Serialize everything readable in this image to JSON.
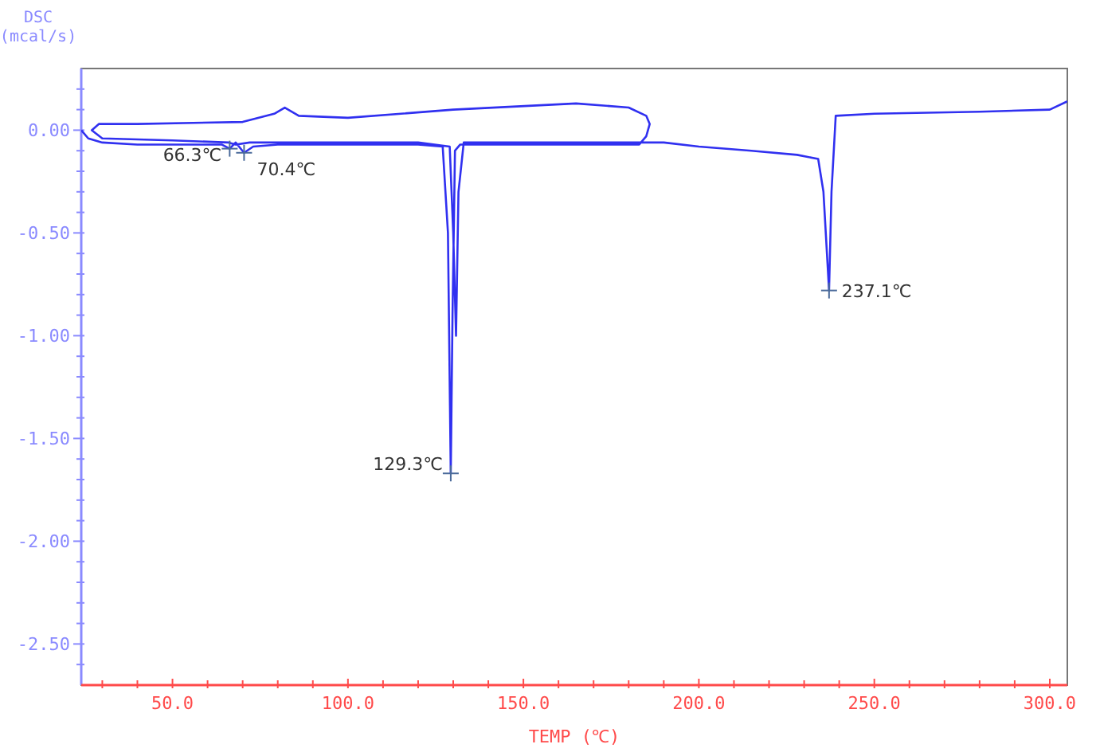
{
  "chart_data": {
    "type": "line",
    "xlabel": "TEMP  (℃)",
    "ylabel": "DSC\n(mcal/s)",
    "xlim": [
      24,
      305
    ],
    "ylim": [
      -2.7,
      0.3
    ],
    "xticks": [
      {
        "value": 30,
        "label": null
      },
      {
        "value": 40,
        "label": null
      },
      {
        "value": 50,
        "label": "50.0"
      },
      {
        "value": 60,
        "label": null
      },
      {
        "value": 70,
        "label": null
      },
      {
        "value": 80,
        "label": null
      },
      {
        "value": 90,
        "label": null
      },
      {
        "value": 100,
        "label": "100.0"
      },
      {
        "value": 110,
        "label": null
      },
      {
        "value": 120,
        "label": null
      },
      {
        "value": 130,
        "label": null
      },
      {
        "value": 140,
        "label": null
      },
      {
        "value": 150,
        "label": "150.0"
      },
      {
        "value": 160,
        "label": null
      },
      {
        "value": 170,
        "label": null
      },
      {
        "value": 180,
        "label": null
      },
      {
        "value": 190,
        "label": null
      },
      {
        "value": 200,
        "label": "200.0"
      },
      {
        "value": 210,
        "label": null
      },
      {
        "value": 220,
        "label": null
      },
      {
        "value": 230,
        "label": null
      },
      {
        "value": 240,
        "label": null
      },
      {
        "value": 250,
        "label": "250.0"
      },
      {
        "value": 260,
        "label": null
      },
      {
        "value": 270,
        "label": null
      },
      {
        "value": 280,
        "label": null
      },
      {
        "value": 290,
        "label": null
      },
      {
        "value": 300,
        "label": "300.0"
      }
    ],
    "yticks": [
      {
        "value": 0.2,
        "label": null
      },
      {
        "value": 0.1,
        "label": null
      },
      {
        "value": 0,
        "label": "0.00"
      },
      {
        "value": -0.1,
        "label": null
      },
      {
        "value": -0.2,
        "label": null
      },
      {
        "value": -0.3,
        "label": null
      },
      {
        "value": -0.4,
        "label": null
      },
      {
        "value": -0.5,
        "label": "-0.50"
      },
      {
        "value": -0.6,
        "label": null
      },
      {
        "value": -0.7,
        "label": null
      },
      {
        "value": -0.8,
        "label": null
      },
      {
        "value": -0.9,
        "label": null
      },
      {
        "value": -1,
        "label": "-1.00"
      },
      {
        "value": -1.1,
        "label": null
      },
      {
        "value": -1.2,
        "label": null
      },
      {
        "value": -1.3,
        "label": null
      },
      {
        "value": -1.4,
        "label": null
      },
      {
        "value": -1.5,
        "label": "-1.50"
      },
      {
        "value": -1.6,
        "label": null
      },
      {
        "value": -1.7,
        "label": null
      },
      {
        "value": -1.8,
        "label": null
      },
      {
        "value": -1.9,
        "label": null
      },
      {
        "value": -2,
        "label": "-2.00"
      },
      {
        "value": -2.1,
        "label": null
      },
      {
        "value": -2.2,
        "label": null
      },
      {
        "value": -2.3,
        "label": null
      },
      {
        "value": -2.4,
        "label": null
      },
      {
        "value": -2.5,
        "label": "-2.50"
      },
      {
        "value": -2.6,
        "label": null
      }
    ],
    "grid": false,
    "marker": "none",
    "line_style": "solid",
    "series": [
      {
        "color": "#3030f0",
        "x": [
          24,
          26,
          30,
          40,
          50,
          64,
          66.3,
          68,
          70.4,
          73,
          80,
          100,
          120,
          127,
          128.5,
          129.3,
          129.8,
          130.5,
          132,
          150,
          170,
          183,
          185,
          186,
          185,
          180,
          165,
          130,
          100,
          86,
          82,
          79,
          70,
          40,
          29,
          27,
          30,
          50,
          66,
          68,
          72,
          90,
          120,
          129,
          130,
          130.8,
          131.5,
          133,
          160,
          180,
          190,
          200,
          215,
          228,
          234,
          235.5,
          237.1,
          237.8,
          239,
          250,
          280,
          300,
          305
        ],
        "values": [
          0.0,
          -0.04,
          -0.06,
          -0.07,
          -0.07,
          -0.07,
          -0.09,
          -0.06,
          -0.11,
          -0.08,
          -0.07,
          -0.07,
          -0.07,
          -0.08,
          -0.5,
          -1.67,
          -0.9,
          -0.1,
          -0.07,
          -0.07,
          -0.07,
          -0.07,
          -0.03,
          0.03,
          0.07,
          0.11,
          0.13,
          0.1,
          0.06,
          0.07,
          0.11,
          0.08,
          0.04,
          0.03,
          0.03,
          0.0,
          -0.04,
          -0.05,
          -0.06,
          -0.07,
          -0.06,
          -0.06,
          -0.06,
          -0.08,
          -0.5,
          -1.0,
          -0.3,
          -0.06,
          -0.06,
          -0.06,
          -0.06,
          -0.08,
          -0.1,
          -0.12,
          -0.14,
          -0.3,
          -0.78,
          -0.3,
          0.07,
          0.08,
          0.09,
          0.1,
          0.14
        ]
      }
    ],
    "annotations": [
      {
        "text": "66.3℃",
        "x": 66.3,
        "y": -0.09
      },
      {
        "text": "70.4℃",
        "x": 70.4,
        "y": -0.11
      },
      {
        "text": "129.3℃",
        "x": 129.3,
        "y": -1.67
      },
      {
        "text": "237.1℃",
        "x": 237.1,
        "y": -0.78
      }
    ]
  }
}
